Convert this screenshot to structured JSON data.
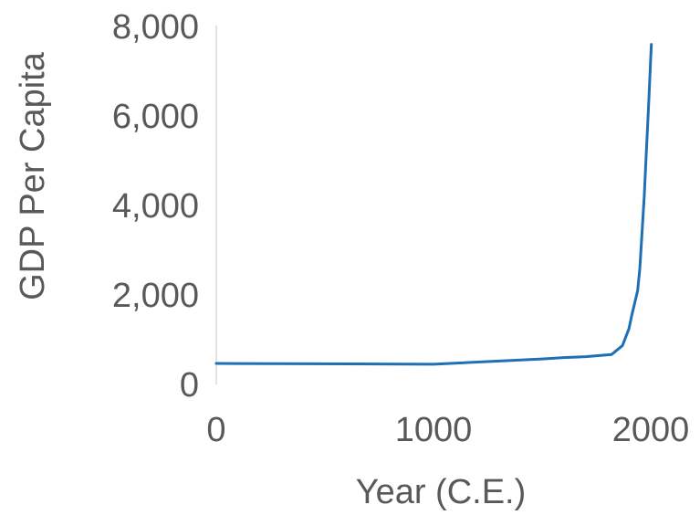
{
  "chart_data": {
    "type": "line",
    "title": "",
    "xlabel": "Year (C.E.)",
    "ylabel": "GDP Per Capita",
    "xlim": [
      0,
      2000
    ],
    "ylim": [
      0,
      8000
    ],
    "x_ticks": [
      0,
      1000,
      2000
    ],
    "x_tick_labels": [
      "0",
      "1000",
      "2000"
    ],
    "y_ticks": [
      0,
      2000,
      4000,
      6000,
      8000
    ],
    "y_tick_labels": [
      "0",
      "2,000",
      "4,000",
      "6,000",
      "8,000"
    ],
    "grid": false,
    "legend": "none",
    "series": [
      {
        "color": "#1f6fb5",
        "x": [
          0,
          1000,
          1500,
          1600,
          1700,
          1820,
          1870,
          1900,
          1913,
          1940,
          1950,
          1960,
          1970,
          1980,
          1990,
          2000,
          2003
        ],
        "y": [
          470,
          450,
          570,
          600,
          620,
          670,
          870,
          1250,
          1550,
          2100,
          2600,
          3400,
          4200,
          5200,
          6200,
          7300,
          7600
        ]
      }
    ]
  }
}
